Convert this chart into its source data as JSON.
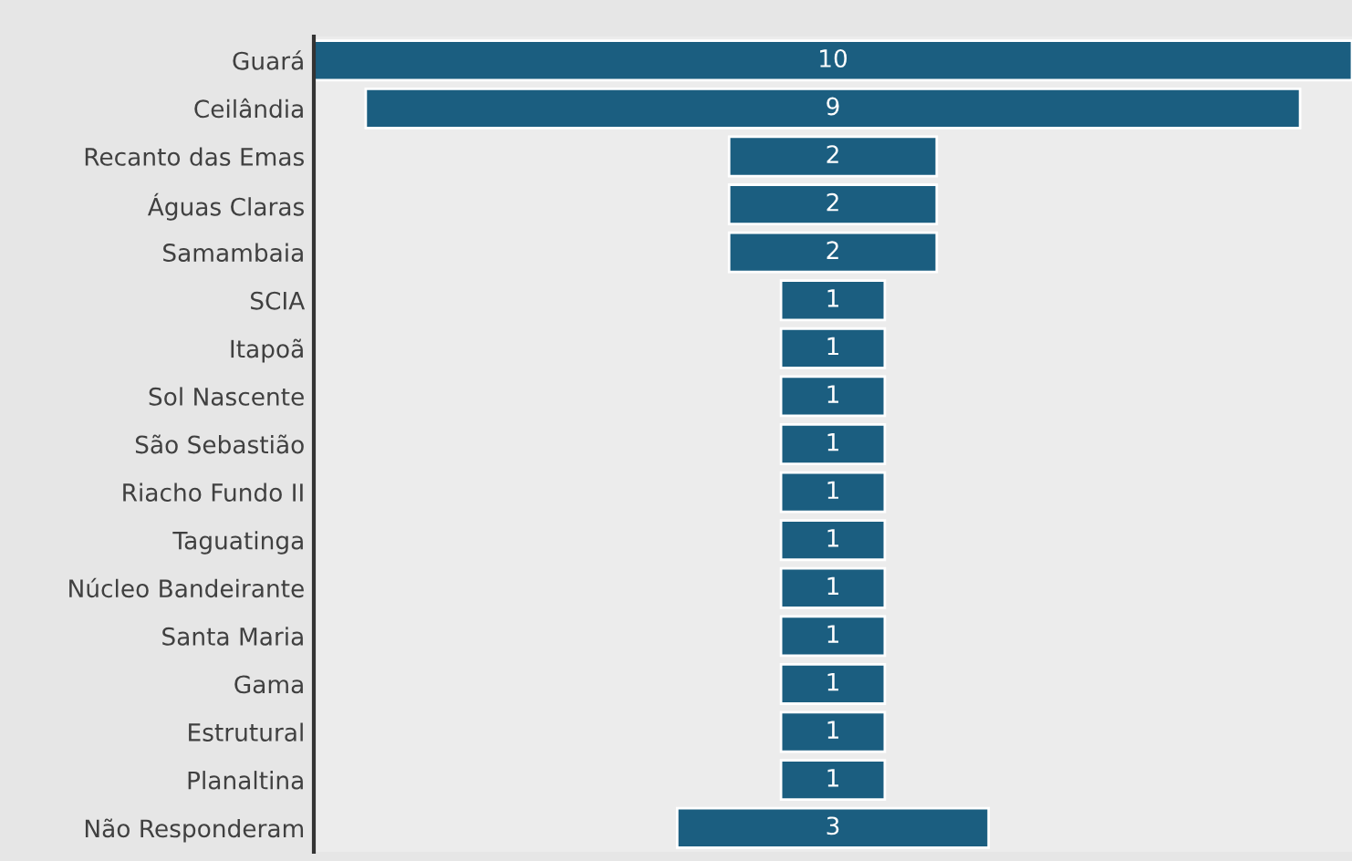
{
  "chart_data": {
    "type": "other",
    "data_labels": true,
    "color": "#1b5e80",
    "categories": [
      "Guará",
      "Ceilândia",
      "Recanto das Emas",
      "Águas Claras",
      "Samambaia",
      "SCIA",
      "Itapoã",
      "Sol Nascente",
      "São Sebastião",
      "Riacho Fundo II",
      "Taguatinga",
      "Núcleo Bandeirante",
      "Santa Maria",
      "Gama",
      "Estrutural",
      "Planaltina",
      "Não Responderam"
    ],
    "values": [
      10,
      9,
      2,
      2,
      2,
      1,
      1,
      1,
      1,
      1,
      1,
      1,
      1,
      1,
      1,
      1,
      3
    ]
  }
}
